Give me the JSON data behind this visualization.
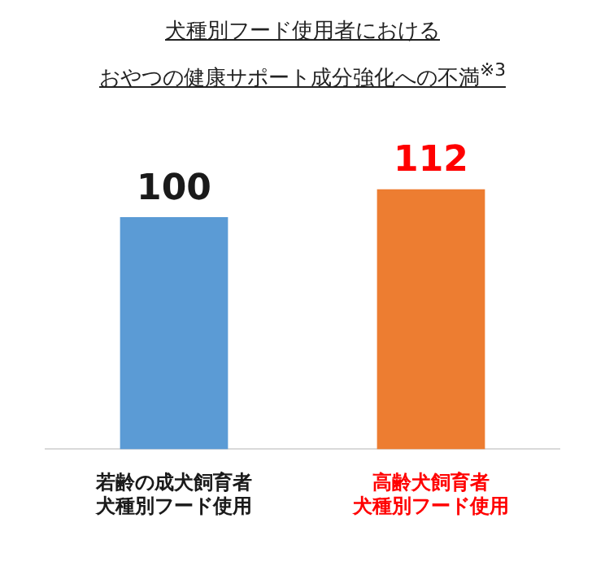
{
  "chart_data": {
    "type": "bar",
    "title": "犬種別フード使用者における",
    "subtitle": "おやつの健康サポート成分強化への不満$^{※3}$",
    "categories": [
      "若齢の成犬飼育者犬種別フード使用",
      "高齢犬飼育者犬種別フード使用"
    ],
    "values": [
      100,
      112
    ],
    "colors": [
      "#5b9bd5",
      "#ed7d31"
    ],
    "tick_labels": "x",
    "grid": false,
    "legend": false,
    "data_labels": true
  }
}
